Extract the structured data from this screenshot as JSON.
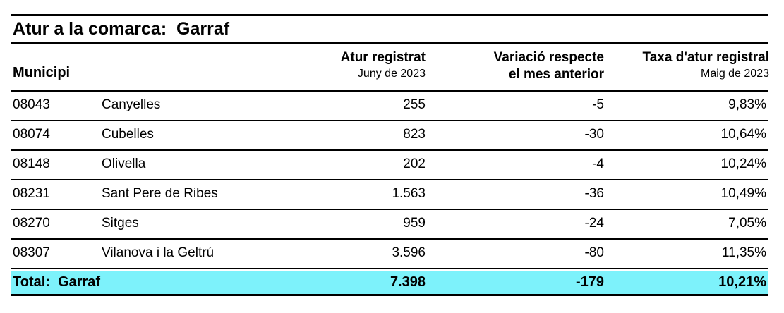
{
  "title": "Atur a la comarca:  Garraf",
  "header": {
    "municipi": "Municipi",
    "atur_label": "Atur registrat",
    "atur_sub": "Juny de 2023",
    "var_label_1": "Variació respecte",
    "var_label_2": "el mes anterior",
    "taxa_label": "Taxa d'atur registral",
    "taxa_sub": "Maig de 2023"
  },
  "rows": [
    {
      "code": "08043",
      "name": "Canyelles",
      "atur": "255",
      "var": "-5",
      "taxa": "9,83%"
    },
    {
      "code": "08074",
      "name": "Cubelles",
      "atur": "823",
      "var": "-30",
      "taxa": "10,64%"
    },
    {
      "code": "08148",
      "name": "Olivella",
      "atur": "202",
      "var": "-4",
      "taxa": "10,24%"
    },
    {
      "code": "08231",
      "name": "Sant Pere de Ribes",
      "atur": "1.563",
      "var": "-36",
      "taxa": "10,49%"
    },
    {
      "code": "08270",
      "name": "Sitges",
      "atur": "959",
      "var": "-24",
      "taxa": "7,05%"
    },
    {
      "code": "08307",
      "name": "Vilanova i la Geltrú",
      "atur": "3.596",
      "var": "-80",
      "taxa": "11,35%"
    }
  ],
  "total": {
    "label": "Total:  Garraf",
    "atur": "7.398",
    "var": "-179",
    "taxa": "10,21%"
  },
  "colors": {
    "total_highlight": "#7df2fb"
  }
}
